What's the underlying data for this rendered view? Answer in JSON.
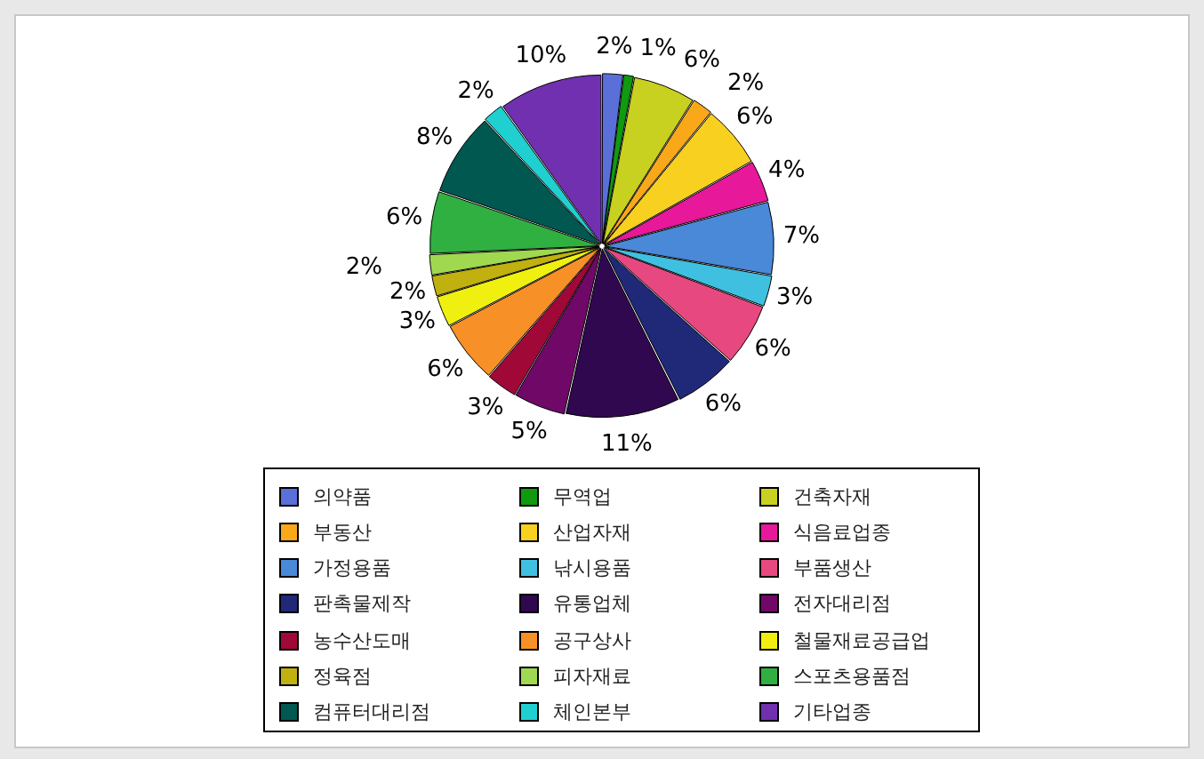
{
  "chart_data": {
    "type": "pie",
    "categories": [
      "의약품",
      "무역업",
      "건축자재",
      "부동산",
      "산업자재",
      "식음료업종",
      "가정용품",
      "낚시용품",
      "부품생산",
      "판촉물제작",
      "유통업체",
      "전자대리점",
      "농수산도매",
      "공구상사",
      "철물재료공급업",
      "정육점",
      "피자재료",
      "스포츠용품점",
      "컴퓨터대리점",
      "체인본부",
      "기타업종"
    ],
    "values": [
      2,
      1,
      6,
      2,
      6,
      4,
      7,
      3,
      6,
      6,
      11,
      5,
      3,
      6,
      3,
      2,
      2,
      6,
      8,
      2,
      10
    ],
    "value_labels": [
      "2%",
      "1%",
      "6%",
      "2%",
      "6%",
      "4%",
      "7%",
      "3%",
      "6%",
      "6%",
      "11%",
      "5%",
      "3%",
      "6%",
      "3%",
      "2%",
      "2%",
      "6%",
      "8%",
      "2%",
      "10%"
    ],
    "colors": [
      "#5a6fd8",
      "#109a10",
      "#c8d020",
      "#f8a818",
      "#f8d020",
      "#e8189a",
      "#4a88d8",
      "#40c0e0",
      "#e84880",
      "#202878",
      "#300850",
      "#700868",
      "#a00838",
      "#f89028",
      "#f0f010",
      "#c0b010",
      "#a0d850",
      "#30b040",
      "#005850",
      "#20d0d0",
      "#7030b0"
    ],
    "legend": "bottom"
  }
}
